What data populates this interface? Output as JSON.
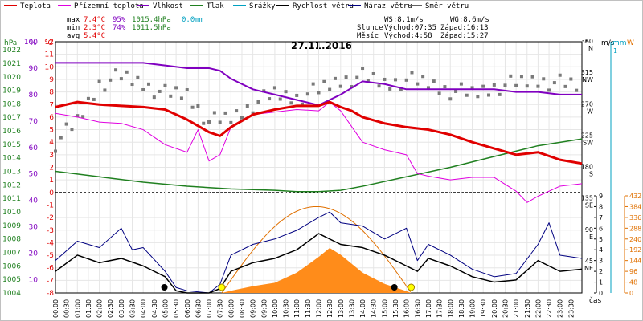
{
  "legend": {
    "items": [
      {
        "label": "Teplota",
        "color": "#e00000"
      },
      {
        "label": "Přízemní teplota",
        "color": "#e000e0"
      },
      {
        "label": "Vlhkost",
        "color": "#8000c0"
      },
      {
        "label": "Tlak",
        "color": "#208020"
      },
      {
        "label": "Srážky",
        "color": "#00a0c0"
      },
      {
        "label": "Rychlost větru",
        "color": "#000000"
      },
      {
        "label": "Náraz větru",
        "color": "#000080"
      },
      {
        "label": "Směr větru",
        "color": "#606060"
      }
    ]
  },
  "stats": {
    "max_label": "max",
    "max_temp": "7.4°C",
    "max_hum": "95%",
    "max_press": "1015.4hPa",
    "max_rain": "0.0mm",
    "min_label": "min",
    "min_temp": "2.3°C",
    "min_hum": "74%",
    "min_press": "1011.5hPa",
    "avg_label": "avg",
    "avg_temp": "5.4°C"
  },
  "wind": {
    "ws": "WS:8.1m/s",
    "wg": "WG:8.6m/s"
  },
  "sun": {
    "label": "Slunce",
    "rise": "Východ:07:35",
    "set": "Západ:16:13"
  },
  "moon": {
    "label": "Měsíc",
    "rise": "Východ:4:58",
    "set": "Západ:15:27"
  },
  "date": "27.11.2016",
  "axes": {
    "hpa_unit": "hPa",
    "pct_unit": "%",
    "c_unit": "°C",
    "deg_unit": "°",
    "ms_unit": "m/s",
    "mm_unit": "mm",
    "w_unit": "W",
    "time_label": "čas",
    "hpa_ticks": [
      "1022",
      "1021",
      "1020",
      "1019",
      "1018",
      "1017",
      "1016",
      "1015",
      "1014",
      "1013",
      "1012",
      "1011",
      "1010",
      "1009",
      "1008",
      "1007",
      "1006",
      "1005",
      "1004"
    ],
    "pct_ticks": [
      "100",
      "90",
      "80",
      "70",
      "60",
      "50",
      "40",
      "30",
      "20",
      "10"
    ],
    "c_ticks": [
      "12",
      "11",
      "10",
      "9",
      "8",
      "7",
      "6",
      "5",
      "4",
      "3",
      "2",
      "1",
      "0",
      "-1",
      "-2",
      "-3",
      "-4",
      "-5",
      "-6",
      "-7",
      "-8"
    ],
    "dir_ticks": [
      {
        "v": "360",
        "d": "N"
      },
      {
        "v": "315",
        "d": "NW"
      },
      {
        "v": "270",
        "d": "W"
      },
      {
        "v": "225",
        "d": "SW"
      },
      {
        "v": "180",
        "d": "S"
      },
      {
        "v": "135",
        "d": "SE"
      },
      {
        "v": "90",
        "d": "E"
      },
      {
        "v": "45",
        "d": "NE"
      }
    ],
    "ms_ticks": [
      "9",
      "8",
      "7",
      "6",
      "5",
      "4",
      "3",
      "2",
      "1",
      "0"
    ],
    "mm_ticks": [
      "1"
    ],
    "w_ticks": [
      "432",
      "384",
      "336",
      "288",
      "240",
      "192",
      "144",
      "96",
      "48",
      "0"
    ],
    "x_ticks": [
      "00:00",
      "00:30",
      "01:00",
      "01:30",
      "02:00",
      "02:30",
      "03:00",
      "03:30",
      "04:00",
      "04:30",
      "05:00",
      "05:30",
      "06:00",
      "06:30",
      "07:00",
      "07:30",
      "08:00",
      "08:30",
      "09:00",
      "09:30",
      "10:00",
      "10:30",
      "11:00",
      "11:30",
      "12:00",
      "12:30",
      "13:00",
      "13:30",
      "14:00",
      "14:30",
      "15:00",
      "15:30",
      "16:00",
      "16:30",
      "17:00",
      "17:30",
      "18:00",
      "18:30",
      "19:00",
      "19:30",
      "20:00",
      "20:30",
      "21:00",
      "21:30",
      "22:00",
      "22:30",
      "23:00",
      "23:30"
    ]
  },
  "chart_data": [
    {
      "type": "line",
      "title": "27.11.2016",
      "xlabel": "čas",
      "x_unit": "hour",
      "series": [
        {
          "name": "Teplota",
          "unit": "°C",
          "color": "#e00000",
          "x": [
            0,
            1,
            2,
            3,
            4,
            5,
            6,
            7,
            7.5,
            8,
            9,
            10,
            11,
            12,
            12.5,
            13,
            13.5,
            14,
            15,
            16,
            17,
            18,
            19,
            20,
            21,
            22,
            23,
            24
          ],
          "y": [
            6.8,
            7.2,
            7.0,
            6.9,
            6.8,
            6.6,
            5.8,
            4.8,
            4.5,
            5.2,
            6.2,
            6.6,
            6.9,
            6.9,
            7.2,
            6.8,
            6.5,
            6.0,
            5.5,
            5.2,
            5.0,
            4.6,
            4.0,
            3.5,
            3.0,
            3.2,
            2.6,
            2.3
          ]
        },
        {
          "name": "Přízemní teplota",
          "unit": "°C",
          "color": "#e000e0",
          "x": [
            0,
            1,
            2,
            3,
            4,
            5,
            6,
            6.5,
            7,
            7.5,
            8,
            9,
            10,
            11,
            12,
            12.5,
            13,
            14,
            15,
            16,
            16.5,
            17,
            18,
            19,
            20,
            21,
            21.5,
            22,
            23,
            24
          ],
          "y": [
            6.3,
            6.0,
            5.6,
            5.5,
            5.0,
            3.8,
            3.2,
            5.0,
            2.5,
            3.0,
            5.2,
            6.2,
            6.4,
            6.6,
            6.5,
            7.2,
            6.5,
            4.0,
            3.4,
            3.0,
            1.5,
            1.3,
            1.0,
            1.2,
            1.2,
            0.1,
            -0.8,
            -0.3,
            0.5,
            0.7
          ]
        },
        {
          "name": "Vlhkost",
          "unit": "%",
          "color": "#8000c0",
          "x": [
            0,
            1,
            2,
            3,
            4,
            5,
            6,
            7,
            7.5,
            8,
            9,
            10,
            11,
            12,
            13,
            14,
            15,
            16,
            17,
            18,
            19,
            20,
            21,
            22,
            23,
            24
          ],
          "y": [
            92,
            92,
            92,
            92,
            92,
            91,
            90,
            90,
            89,
            86,
            82,
            80,
            78,
            76,
            80,
            85,
            84,
            82,
            82,
            82,
            82,
            82,
            81,
            81,
            80,
            80
          ]
        },
        {
          "name": "Tlak",
          "unit": "hPa",
          "color": "#208020",
          "x": [
            0,
            2,
            4,
            6,
            8,
            10,
            11,
            12,
            13,
            14,
            16,
            18,
            20,
            22,
            24
          ],
          "y": [
            1013.0,
            1012.6,
            1012.2,
            1011.9,
            1011.7,
            1011.6,
            1011.5,
            1011.5,
            1011.6,
            1011.9,
            1012.6,
            1013.3,
            1014.1,
            1014.9,
            1015.4
          ]
        },
        {
          "name": "Rychlost větru",
          "unit": "m/s",
          "color": "#000000",
          "x": [
            0,
            1,
            2,
            3,
            4,
            5,
            5.5,
            6,
            7,
            7.5,
            8,
            9,
            10,
            11,
            12,
            13,
            14,
            15,
            16,
            16.5,
            17,
            18,
            19,
            20,
            21,
            22,
            23,
            24
          ],
          "y": [
            2.0,
            3.5,
            2.8,
            3.2,
            2.5,
            1.5,
            0.2,
            0.0,
            0.0,
            0.4,
            2.0,
            2.8,
            3.2,
            4.0,
            5.5,
            4.5,
            4.2,
            3.5,
            2.5,
            2.0,
            3.2,
            2.5,
            1.5,
            1.0,
            1.2,
            3.0,
            2.0,
            2.2
          ]
        },
        {
          "name": "Náraz větru",
          "unit": "m/s",
          "color": "#000080",
          "x": [
            0,
            1,
            2,
            3,
            3.5,
            4,
            5,
            5.5,
            6,
            7,
            7.5,
            8,
            9,
            10,
            11,
            12,
            12.5,
            13,
            14,
            15,
            16,
            16.5,
            17,
            18,
            19,
            20,
            21,
            22,
            22.5,
            23,
            24
          ],
          "y": [
            3.0,
            4.8,
            4.2,
            6.0,
            4.0,
            4.2,
            2.0,
            0.5,
            0.2,
            0.0,
            0.8,
            3.5,
            4.5,
            5.0,
            5.8,
            7.0,
            7.5,
            6.5,
            6.2,
            5.0,
            6.0,
            3.0,
            4.5,
            3.5,
            2.2,
            1.5,
            1.8,
            4.5,
            6.5,
            3.5,
            3.2
          ]
        },
        {
          "name": "Směr větru",
          "unit": "°",
          "color": "#606060",
          "x": [
            0,
            1,
            2,
            3,
            4,
            5,
            6,
            7,
            8,
            9,
            10,
            11,
            12,
            13,
            14,
            15,
            16,
            17,
            18,
            19,
            20,
            21,
            22,
            23,
            24
          ],
          "y": [
            215,
            245,
            300,
            310,
            300,
            285,
            285,
            245,
            250,
            270,
            285,
            280,
            290,
            305,
            310,
            300,
            305,
            300,
            290,
            285,
            295,
            300,
            305,
            300,
            295
          ]
        },
        {
          "name": "Slunce",
          "unit": "W",
          "color": "#e07000",
          "x": [
            7.583,
            8,
            9,
            10,
            11,
            12,
            12.5,
            13,
            14,
            15,
            16,
            16.217
          ],
          "y": [
            0,
            10,
            30,
            45,
            90,
            160,
            200,
            170,
            90,
            40,
            8,
            0
          ]
        }
      ],
      "sun_curve": {
        "rise": 7.583,
        "set": 16.217,
        "peak": 11.9,
        "peak_value": 384,
        "unit": "W"
      },
      "moon_events": {
        "rise": 4.967,
        "set": 15.45
      },
      "y_axes": [
        {
          "name": "hPa",
          "range": [
            1004,
            1022.6
          ]
        },
        {
          "name": "%",
          "range": [
            5,
            100
          ]
        },
        {
          "name": "°C",
          "range": [
            -8,
            12
          ]
        },
        {
          "name": "°",
          "range": [
            0,
            360
          ]
        },
        {
          "name": "m/s",
          "range": [
            0,
            9
          ]
        },
        {
          "name": "W",
          "range": [
            0,
            432
          ]
        }
      ],
      "grid": true
    }
  ]
}
